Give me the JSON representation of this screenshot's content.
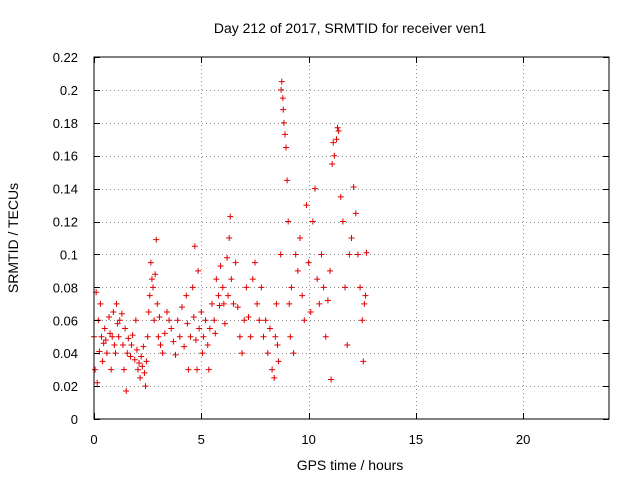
{
  "chart_data": {
    "type": "scatter",
    "title": "Day 212 of 2017, SRMTID for receiver ven1",
    "xlabel": "GPS time / hours",
    "ylabel": "SRMTID / TECUs",
    "xlim": [
      0,
      24
    ],
    "ylim": [
      0,
      0.22
    ],
    "x_ticks": [
      0,
      5,
      10,
      15,
      20
    ],
    "x_tick_labels": [
      "0",
      "5",
      "10",
      "15",
      "20"
    ],
    "y_ticks": [
      0,
      0.02,
      0.04,
      0.06,
      0.08,
      0.1,
      0.12,
      0.14,
      0.16,
      0.18,
      0.2,
      0.22
    ],
    "y_tick_labels": [
      "0",
      "0.02",
      "0.04",
      "0.06",
      "0.08",
      "0.1",
      "0.12",
      "0.14",
      "0.16",
      "0.18",
      "0.2",
      "0.22"
    ],
    "grid": true,
    "marker": "plus",
    "marker_color": "#e00000",
    "series": [
      {
        "name": "ven1",
        "points": [
          [
            0.0,
            0.05
          ],
          [
            0.05,
            0.03
          ],
          [
            0.1,
            0.077
          ],
          [
            0.15,
            0.022
          ],
          [
            0.2,
            0.06
          ],
          [
            0.25,
            0.041
          ],
          [
            0.3,
            0.07
          ],
          [
            0.35,
            0.05
          ],
          [
            0.4,
            0.035
          ],
          [
            0.45,
            0.046
          ],
          [
            0.5,
            0.055
          ],
          [
            0.55,
            0.048
          ],
          [
            0.6,
            0.04
          ],
          [
            0.7,
            0.062
          ],
          [
            0.75,
            0.052
          ],
          [
            0.8,
            0.03
          ],
          [
            0.85,
            0.05
          ],
          [
            0.9,
            0.065
          ],
          [
            0.95,
            0.045
          ],
          [
            1.0,
            0.04
          ],
          [
            1.05,
            0.07
          ],
          [
            1.1,
            0.058
          ],
          [
            1.15,
            0.05
          ],
          [
            1.2,
            0.06
          ],
          [
            1.3,
            0.064
          ],
          [
            1.35,
            0.045
          ],
          [
            1.4,
            0.03
          ],
          [
            1.45,
            0.055
          ],
          [
            1.5,
            0.017
          ],
          [
            1.55,
            0.04
          ],
          [
            1.6,
            0.049
          ],
          [
            1.7,
            0.038
          ],
          [
            1.75,
            0.045
          ],
          [
            1.8,
            0.051
          ],
          [
            1.9,
            0.036
          ],
          [
            1.95,
            0.06
          ],
          [
            2.0,
            0.042
          ],
          [
            2.05,
            0.03
          ],
          [
            2.1,
            0.034
          ],
          [
            2.15,
            0.025
          ],
          [
            2.2,
            0.038
          ],
          [
            2.25,
            0.032
          ],
          [
            2.3,
            0.044
          ],
          [
            2.35,
            0.028
          ],
          [
            2.4,
            0.02
          ],
          [
            2.45,
            0.035
          ],
          [
            2.5,
            0.05
          ],
          [
            2.55,
            0.065
          ],
          [
            2.6,
            0.075
          ],
          [
            2.65,
            0.095
          ],
          [
            2.7,
            0.085
          ],
          [
            2.75,
            0.08
          ],
          [
            2.8,
            0.06
          ],
          [
            2.85,
            0.088
          ],
          [
            2.9,
            0.109
          ],
          [
            2.95,
            0.07
          ],
          [
            3.0,
            0.05
          ],
          [
            3.05,
            0.062
          ],
          [
            3.1,
            0.045
          ],
          [
            3.2,
            0.04
          ],
          [
            3.3,
            0.052
          ],
          [
            3.4,
            0.065
          ],
          [
            3.5,
            0.06
          ],
          [
            3.6,
            0.055
          ],
          [
            3.7,
            0.047
          ],
          [
            3.8,
            0.039
          ],
          [
            3.9,
            0.06
          ],
          [
            4.0,
            0.05
          ],
          [
            4.1,
            0.068
          ],
          [
            4.2,
            0.044
          ],
          [
            4.3,
            0.075
          ],
          [
            4.35,
            0.058
          ],
          [
            4.4,
            0.03
          ],
          [
            4.5,
            0.05
          ],
          [
            4.6,
            0.08
          ],
          [
            4.65,
            0.062
          ],
          [
            4.7,
            0.105
          ],
          [
            4.75,
            0.048
          ],
          [
            4.8,
            0.03
          ],
          [
            4.85,
            0.09
          ],
          [
            4.9,
            0.055
          ],
          [
            5.0,
            0.065
          ],
          [
            5.05,
            0.04
          ],
          [
            5.1,
            0.05
          ],
          [
            5.2,
            0.06
          ],
          [
            5.3,
            0.045
          ],
          [
            5.35,
            0.03
          ],
          [
            5.4,
            0.055
          ],
          [
            5.5,
            0.07
          ],
          [
            5.6,
            0.06
          ],
          [
            5.65,
            0.052
          ],
          [
            5.7,
            0.085
          ],
          [
            5.8,
            0.075
          ],
          [
            5.85,
            0.069
          ],
          [
            5.9,
            0.093
          ],
          [
            6.0,
            0.08
          ],
          [
            6.05,
            0.07
          ],
          [
            6.1,
            0.058
          ],
          [
            6.2,
            0.098
          ],
          [
            6.25,
            0.075
          ],
          [
            6.3,
            0.11
          ],
          [
            6.35,
            0.123
          ],
          [
            6.4,
            0.085
          ],
          [
            6.5,
            0.07
          ],
          [
            6.6,
            0.095
          ],
          [
            6.7,
            0.068
          ],
          [
            6.8,
            0.05
          ],
          [
            6.9,
            0.04
          ],
          [
            7.0,
            0.06
          ],
          [
            7.1,
            0.08
          ],
          [
            7.2,
            0.062
          ],
          [
            7.3,
            0.05
          ],
          [
            7.4,
            0.085
          ],
          [
            7.5,
            0.095
          ],
          [
            7.6,
            0.07
          ],
          [
            7.7,
            0.06
          ],
          [
            7.8,
            0.08
          ],
          [
            7.9,
            0.05
          ],
          [
            8.0,
            0.06
          ],
          [
            8.1,
            0.04
          ],
          [
            8.2,
            0.055
          ],
          [
            8.3,
            0.03
          ],
          [
            8.4,
            0.025
          ],
          [
            8.45,
            0.05
          ],
          [
            8.5,
            0.07
          ],
          [
            8.55,
            0.045
          ],
          [
            8.6,
            0.035
          ],
          [
            8.7,
            0.1
          ],
          [
            8.72,
            0.2
          ],
          [
            8.75,
            0.205
          ],
          [
            8.8,
            0.195
          ],
          [
            8.82,
            0.188
          ],
          [
            8.85,
            0.18
          ],
          [
            8.9,
            0.173
          ],
          [
            8.95,
            0.165
          ],
          [
            9.0,
            0.145
          ],
          [
            9.05,
            0.12
          ],
          [
            9.1,
            0.07
          ],
          [
            9.15,
            0.05
          ],
          [
            9.2,
            0.08
          ],
          [
            9.3,
            0.04
          ],
          [
            9.4,
            0.1
          ],
          [
            9.5,
            0.09
          ],
          [
            9.6,
            0.11
          ],
          [
            9.7,
            0.075
          ],
          [
            9.8,
            0.06
          ],
          [
            9.9,
            0.13
          ],
          [
            10.0,
            0.095
          ],
          [
            10.1,
            0.065
          ],
          [
            10.2,
            0.12
          ],
          [
            10.3,
            0.14
          ],
          [
            10.4,
            0.085
          ],
          [
            10.5,
            0.07
          ],
          [
            10.6,
            0.1
          ],
          [
            10.7,
            0.08
          ],
          [
            10.8,
            0.05
          ],
          [
            10.9,
            0.072
          ],
          [
            11.0,
            0.09
          ],
          [
            11.05,
            0.024
          ],
          [
            11.1,
            0.155
          ],
          [
            11.15,
            0.168
          ],
          [
            11.2,
            0.16
          ],
          [
            11.3,
            0.17
          ],
          [
            11.35,
            0.177
          ],
          [
            11.4,
            0.175
          ],
          [
            11.5,
            0.135
          ],
          [
            11.6,
            0.12
          ],
          [
            11.7,
            0.08
          ],
          [
            11.8,
            0.045
          ],
          [
            11.9,
            0.1
          ],
          [
            12.0,
            0.11
          ],
          [
            12.1,
            0.141
          ],
          [
            12.2,
            0.125
          ],
          [
            12.3,
            0.1
          ],
          [
            12.4,
            0.08
          ],
          [
            12.5,
            0.06
          ],
          [
            12.55,
            0.035
          ],
          [
            12.6,
            0.07
          ],
          [
            12.65,
            0.075
          ],
          [
            12.7,
            0.101
          ]
        ]
      }
    ]
  }
}
